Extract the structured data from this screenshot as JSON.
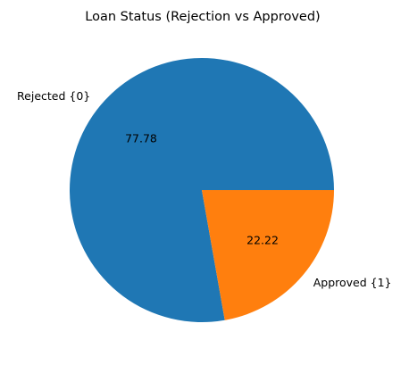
{
  "chart_data": {
    "type": "pie",
    "title": "Loan Status (Rejection vs Approved)",
    "labels": [
      "Rejected {0}",
      "Approved {1}"
    ],
    "values": [
      77.78,
      22.22
    ],
    "percent_labels": [
      "77.78",
      "22.22"
    ],
    "colors": [
      "#1f77b4",
      "#ff7f0e"
    ],
    "start_angle_deg": 0,
    "direction": "counterclockwise",
    "legend": "none"
  }
}
